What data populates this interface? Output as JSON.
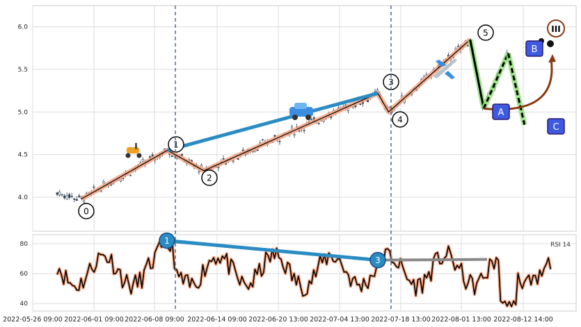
{
  "chart_data": [
    {
      "type": "candlestick",
      "panel": "price",
      "ylim": [
        3.6,
        6.25
      ],
      "yticks": [
        4.0,
        4.5,
        5.0,
        5.5,
        6.0
      ],
      "grid": true,
      "wave_points": [
        {
          "label": "0",
          "x": 0.09,
          "y": 3.98
        },
        {
          "label": "1",
          "x": 0.248,
          "y": 4.55
        },
        {
          "label": "2",
          "x": 0.315,
          "y": 4.31
        },
        {
          "label": "3",
          "x": 0.635,
          "y": 5.22
        },
        {
          "label": "4",
          "x": 0.655,
          "y": 5.0
        },
        {
          "label": "5",
          "x": 0.805,
          "y": 5.85
        },
        {
          "label": "A",
          "x": 0.83,
          "y": 5.04
        },
        {
          "label": "B",
          "x": 0.875,
          "y": 5.69
        },
        {
          "label": "C",
          "x": 0.905,
          "y": 4.85
        }
      ],
      "marker_labels": {
        "0": "0",
        "1": "1",
        "2": "2",
        "3": "3",
        "4": "4",
        "5": "5",
        "A": "A",
        "B": "B",
        "C": "C",
        "III": "III"
      },
      "icons": [
        "scooter-icon",
        "car-icon",
        "airplane-icon"
      ],
      "colors": {
        "wave": "#f4a582",
        "trend": "#2b8cc4",
        "up_candle": "#ffffff",
        "down_candle": "#2f4056",
        "box_label": "#3d5ae0",
        "arrow": "#8b3a0f",
        "corr_leg": "#90e07a"
      }
    },
    {
      "type": "line",
      "panel": "rsi",
      "legend": "RSI 14",
      "ylim": [
        35,
        86
      ],
      "yticks": [
        40,
        60,
        80
      ],
      "divergence_markers": [
        {
          "label": "1",
          "x": 0.247,
          "y": 82
        },
        {
          "label": "3",
          "x": 0.635,
          "y": 69
        }
      ],
      "colors": {
        "line": "#000000",
        "halo": "#f4a582",
        "divergence": "#2b8cc4",
        "flat": "#888888"
      }
    }
  ],
  "x_tick_labels": [
    "2022-05-26 09:00",
    "2022-06-01 09:00",
    "2022-06-08 09:00",
    "2022-06-14 09:00",
    "2022-06-20 13:00",
    "2022-07-04 13:00",
    "2022-07-18 13:00",
    "2022-08-01 13:00",
    "2022-08-12 14:00"
  ]
}
